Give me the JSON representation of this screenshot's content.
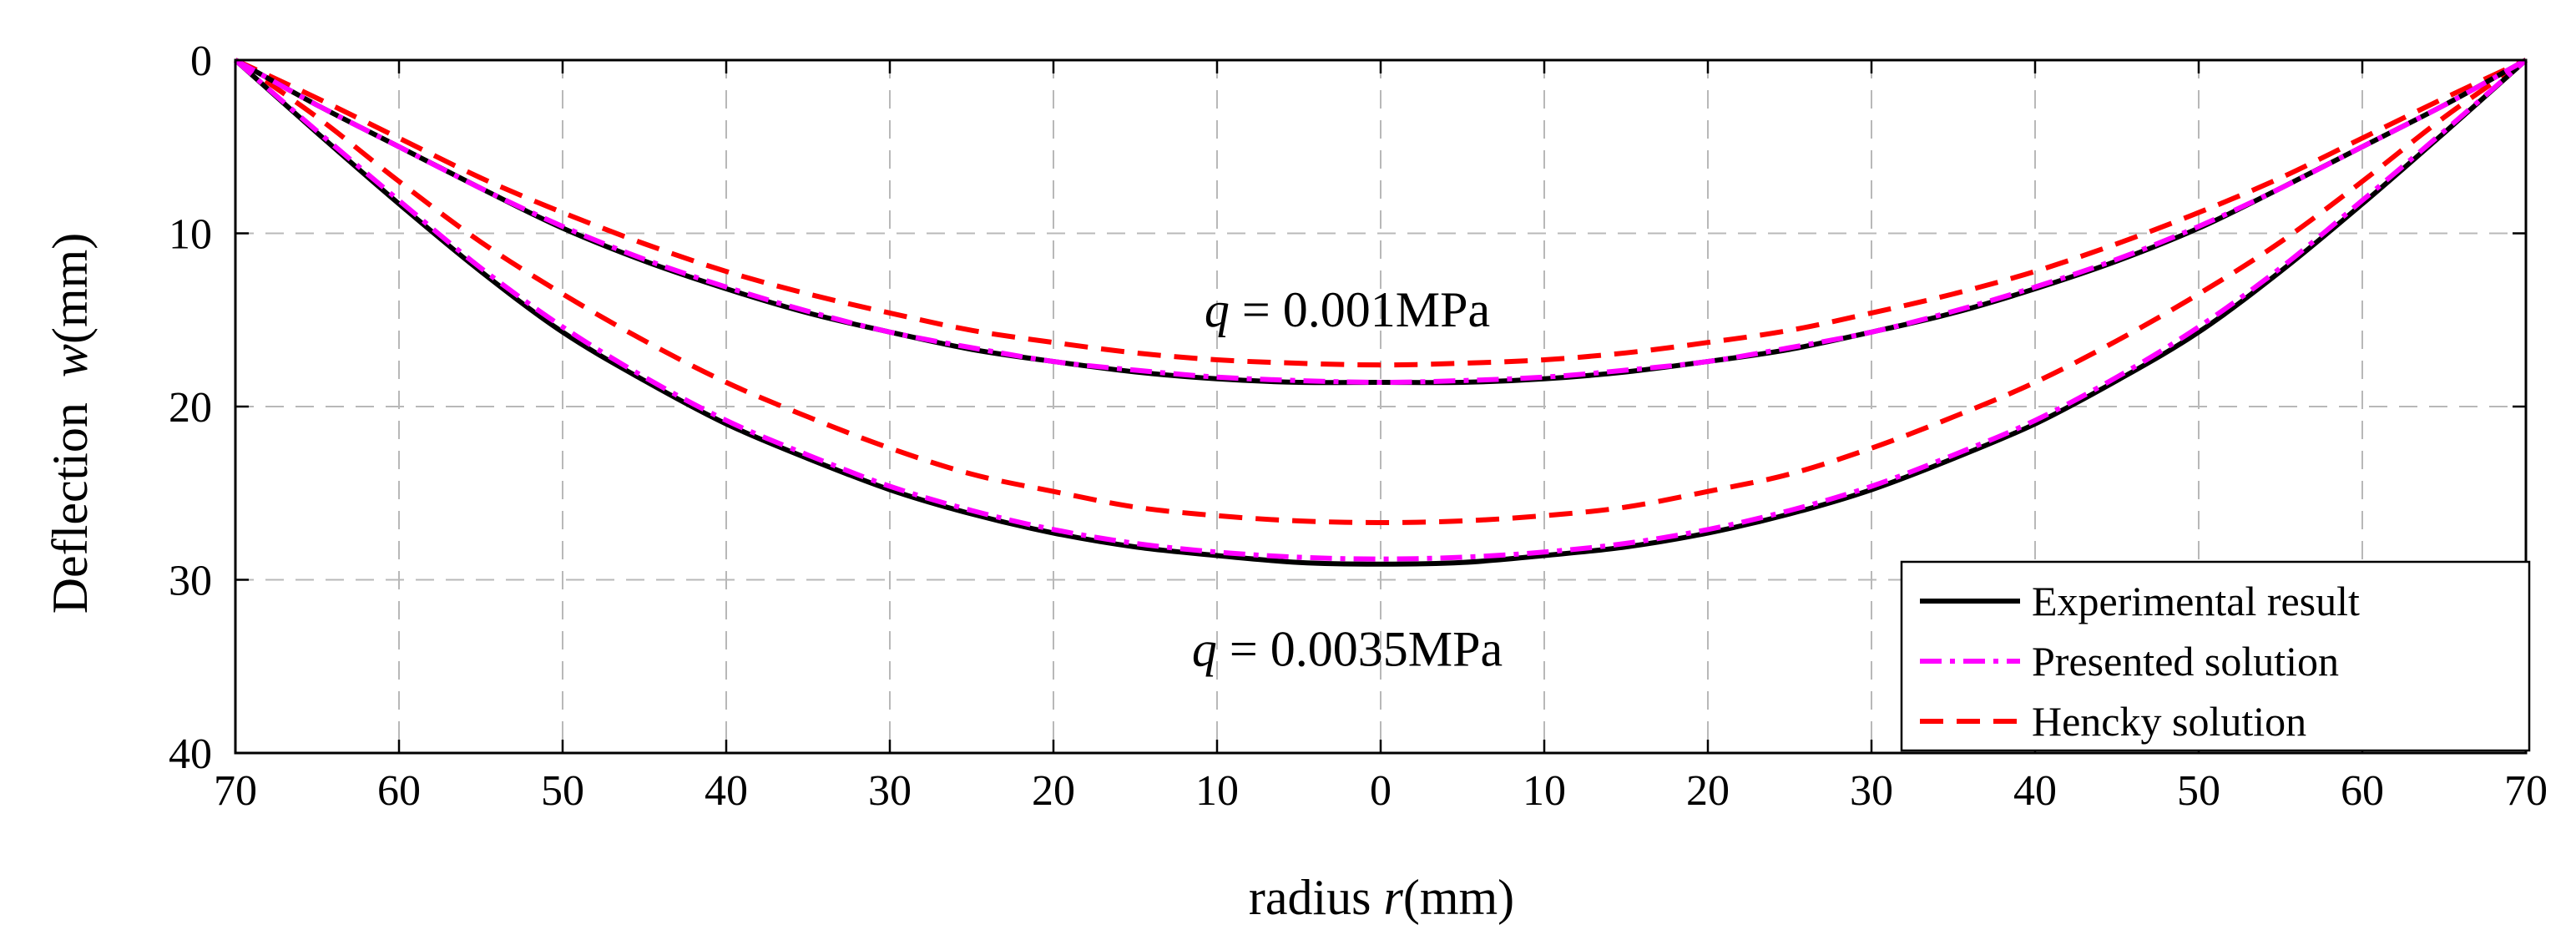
{
  "chart_data": {
    "type": "line",
    "title": "",
    "xlabel": {
      "prefix": "radius ",
      "var": "r",
      "suffix": "(mm)"
    },
    "ylabel": {
      "prefix": "Deflection  ",
      "var": "w",
      "suffix": "(mm)"
    },
    "xlim": [
      -70,
      70
    ],
    "ylim": [
      0,
      40
    ],
    "y_inverted": true,
    "grid": true,
    "x_ticks": [
      -70,
      -60,
      -50,
      -40,
      -30,
      -20,
      -10,
      0,
      10,
      20,
      30,
      40,
      50,
      60,
      70
    ],
    "x_tick_labels": [
      "70",
      "60",
      "50",
      "40",
      "30",
      "20",
      "10",
      "0",
      "10",
      "20",
      "30",
      "40",
      "50",
      "60",
      "70"
    ],
    "y_ticks": [
      0,
      10,
      20,
      30,
      40
    ],
    "y_tick_labels": [
      "0",
      "10",
      "20",
      "30",
      "40"
    ],
    "legend_position": "bottom-right",
    "x": [
      -70,
      -65,
      -60,
      -55,
      -50,
      -45,
      -40,
      -35,
      -30,
      -25,
      -20,
      -15,
      -10,
      -5,
      0,
      5,
      10,
      15,
      20,
      25,
      30,
      35,
      40,
      45,
      50,
      55,
      60,
      65,
      70
    ],
    "series": [
      {
        "name": "Experimental result",
        "legend": "Experimental result",
        "group": "q = 0.001MPa",
        "color": "#000000",
        "style": "solid",
        "values": [
          0,
          2.6,
          5.0,
          7.4,
          9.7,
          11.6,
          13.2,
          14.6,
          15.7,
          16.7,
          17.4,
          18.0,
          18.4,
          18.6,
          18.6,
          18.6,
          18.4,
          18.0,
          17.4,
          16.7,
          15.7,
          14.6,
          13.2,
          11.6,
          9.7,
          7.4,
          5.0,
          2.6,
          0
        ]
      },
      {
        "name": "Presented solution",
        "legend": "Presented solution",
        "group": "q = 0.001MPa",
        "color": "#ff00ff",
        "style": "dashdot",
        "values": [
          0,
          2.6,
          5.0,
          7.4,
          9.6,
          11.5,
          13.1,
          14.5,
          15.7,
          16.6,
          17.4,
          17.9,
          18.3,
          18.5,
          18.6,
          18.5,
          18.3,
          17.9,
          17.4,
          16.6,
          15.7,
          14.5,
          13.1,
          11.5,
          9.6,
          7.4,
          5.0,
          2.6,
          0
        ]
      },
      {
        "name": "Hencky solution",
        "legend": "Hencky solution",
        "group": "q = 0.001MPa",
        "color": "#ff0000",
        "style": "dashed",
        "values": [
          0,
          2.2,
          4.5,
          6.8,
          8.8,
          10.6,
          12.2,
          13.5,
          14.6,
          15.6,
          16.3,
          16.9,
          17.3,
          17.5,
          17.6,
          17.5,
          17.3,
          16.9,
          16.3,
          15.6,
          14.6,
          13.5,
          12.2,
          10.6,
          8.8,
          6.8,
          4.5,
          2.2,
          0
        ]
      },
      {
        "name": "Experimental result",
        "legend": "",
        "group": "q = 0.0035MPa",
        "color": "#000000",
        "style": "solid",
        "values": [
          0,
          4.2,
          8.3,
          12.2,
          15.7,
          18.5,
          21.0,
          23.0,
          24.8,
          26.2,
          27.3,
          28.1,
          28.6,
          29.0,
          29.1,
          29.0,
          28.6,
          28.1,
          27.3,
          26.2,
          24.8,
          23.0,
          21.0,
          18.5,
          15.7,
          12.2,
          8.3,
          4.2,
          0
        ]
      },
      {
        "name": "Presented solution",
        "legend": "",
        "group": "q = 0.0035MPa",
        "color": "#ff00ff",
        "style": "dashdot",
        "values": [
          0,
          4.1,
          8.1,
          12.0,
          15.4,
          18.3,
          20.8,
          22.8,
          24.6,
          26.0,
          27.1,
          27.9,
          28.4,
          28.7,
          28.8,
          28.7,
          28.4,
          27.9,
          27.1,
          26.0,
          24.6,
          22.8,
          20.8,
          18.3,
          15.4,
          12.0,
          8.1,
          4.1,
          0
        ]
      },
      {
        "name": "Hencky solution",
        "legend": "",
        "group": "q = 0.0035MPa",
        "color": "#ff0000",
        "style": "dashed",
        "values": [
          0,
          3.3,
          7.0,
          10.5,
          13.5,
          16.2,
          18.6,
          20.6,
          22.4,
          23.9,
          24.9,
          25.8,
          26.3,
          26.6,
          26.7,
          26.6,
          26.3,
          25.8,
          24.9,
          23.9,
          22.4,
          20.6,
          18.6,
          16.2,
          13.5,
          10.5,
          7.0,
          3.3,
          0
        ]
      }
    ],
    "annotations": [
      {
        "var": "q",
        "text": " = 0.001MPa",
        "x": 0,
        "y": 14.4
      },
      {
        "var": "q",
        "text": " = 0.0035MPa",
        "x": 0,
        "y": 34.0
      }
    ]
  }
}
